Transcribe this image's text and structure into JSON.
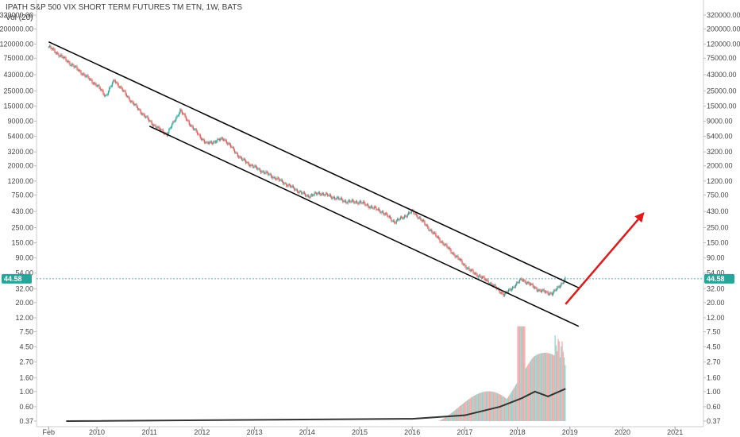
{
  "header": {
    "title": "IPATH S&P 500 VIX SHORT TERM FUTURES TM ETN, 1W, BATS",
    "indicator": "Vol (20)"
  },
  "colors": {
    "up": "#26a69a",
    "down": "#ef5350",
    "price_line": "#26a69a",
    "channel": "#000000",
    "arrow": "#e0191b",
    "volume_ma": "#333333"
  },
  "chart_data": {
    "type": "candlestick",
    "title": "IPATH S&P 500 VIX SHORT TERM FUTURES TM ETN, 1W, BATS",
    "y_scale": "log",
    "price_axis_ticks": [
      "320000.00",
      "200000.00",
      "120000.00",
      "75000.00",
      "43000.00",
      "25000.00",
      "15000.00",
      "9000.00",
      "5400.00",
      "3200.00",
      "2000.00",
      "1200.00",
      "750.00",
      "430.00",
      "250.00",
      "150.00",
      "90.00",
      "54.00",
      "32.00",
      "20.00",
      "12.00",
      "7.50",
      "4.50",
      "2.70",
      "1.60",
      "1.00",
      "0.60",
      "0.37"
    ],
    "x_axis_ticks": [
      "Feb",
      "2010",
      "2011",
      "2012",
      "2013",
      "2014",
      "2015",
      "2016",
      "2017",
      "2018",
      "2019",
      "2020",
      "2021"
    ],
    "last_price": "44.58",
    "ohlc_approx": [
      {
        "x": "2009-02",
        "close": 110000
      },
      {
        "x": "2009-06",
        "close": 70000
      },
      {
        "x": "2010-01",
        "close": 30000
      },
      {
        "x": "2010-03",
        "close": 21000
      },
      {
        "x": "2010-05",
        "close": 36000
      },
      {
        "x": "2010-09",
        "close": 17000
      },
      {
        "x": "2011-01",
        "close": 9000
      },
      {
        "x": "2011-03",
        "close": 7000
      },
      {
        "x": "2011-05",
        "close": 5800
      },
      {
        "x": "2011-08",
        "close": 13000
      },
      {
        "x": "2011-11",
        "close": 7000
      },
      {
        "x": "2012-02",
        "close": 4200
      },
      {
        "x": "2012-06",
        "close": 5000
      },
      {
        "x": "2012-10",
        "close": 2500
      },
      {
        "x": "2013-01",
        "close": 1900
      },
      {
        "x": "2013-06",
        "close": 1300
      },
      {
        "x": "2014-01",
        "close": 720
      },
      {
        "x": "2014-04",
        "close": 800
      },
      {
        "x": "2014-10",
        "close": 600
      },
      {
        "x": "2015-01",
        "close": 590
      },
      {
        "x": "2015-06",
        "close": 430
      },
      {
        "x": "2015-09",
        "close": 300
      },
      {
        "x": "2016-01",
        "close": 430
      },
      {
        "x": "2016-02",
        "close": 380
      },
      {
        "x": "2016-06",
        "close": 200
      },
      {
        "x": "2016-10",
        "close": 110
      },
      {
        "x": "2017-02",
        "close": 60
      },
      {
        "x": "2017-06",
        "close": 42
      },
      {
        "x": "2017-10",
        "close": 26
      },
      {
        "x": "2018-02",
        "close": 44
      },
      {
        "x": "2018-06",
        "close": 30
      },
      {
        "x": "2018-09",
        "close": 27
      },
      {
        "x": "2018-12",
        "close": 44.58
      }
    ],
    "volume_ma_approx": [
      {
        "x": "2009-06",
        "value": 0.37
      },
      {
        "x": "2016-01",
        "value": 0.4
      },
      {
        "x": "2017-01",
        "value": 0.45
      },
      {
        "x": "2017-09",
        "value": 0.6
      },
      {
        "x": "2018-02",
        "value": 0.8
      },
      {
        "x": "2018-05",
        "value": 1.0
      },
      {
        "x": "2018-08",
        "value": 0.85
      },
      {
        "x": "2018-12",
        "value": 1.1
      }
    ],
    "drawings": [
      {
        "type": "trend_line",
        "name": "channel-upper",
        "from": {
          "x": "2009-02",
          "price": 130000
        },
        "to": {
          "x": "2019-03",
          "price": 33
        }
      },
      {
        "type": "trend_line",
        "name": "channel-lower",
        "from": {
          "x": "2011-01",
          "price": 7600
        },
        "to": {
          "x": "2019-03",
          "price": 9
        }
      },
      {
        "type": "arrow",
        "name": "projection-arrow",
        "from": {
          "x": "2018-12",
          "price": 19
        },
        "to": {
          "x": "2020-06",
          "price": 420
        }
      }
    ]
  }
}
